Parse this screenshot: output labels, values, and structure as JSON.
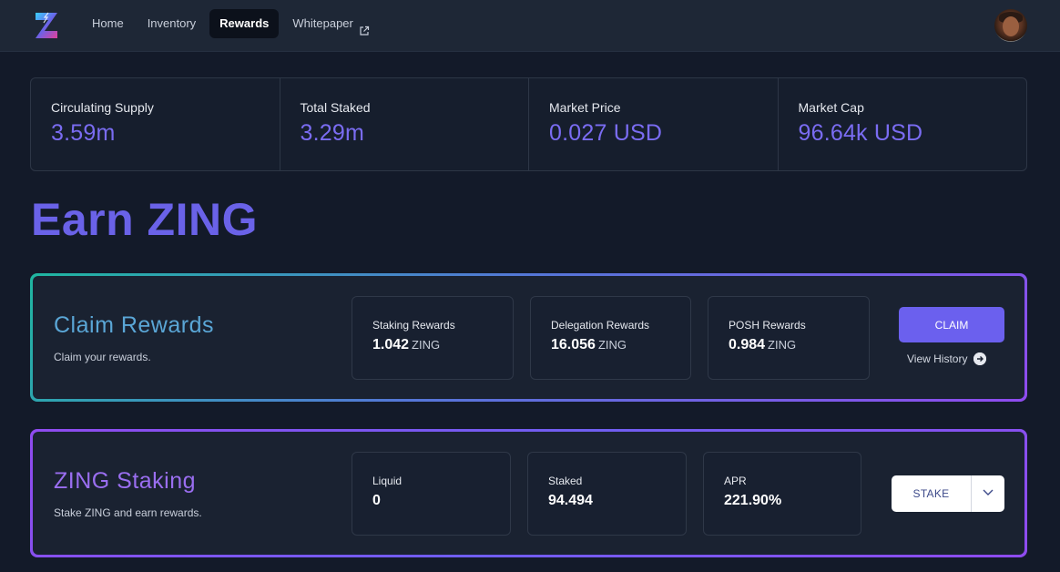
{
  "nav": {
    "items": [
      {
        "label": "Home",
        "active": false
      },
      {
        "label": "Inventory",
        "active": false
      },
      {
        "label": "Rewards",
        "active": true
      },
      {
        "label": "Whitepaper",
        "active": false,
        "external": true
      }
    ]
  },
  "stats": [
    {
      "label": "Circulating Supply",
      "value": "3.59m"
    },
    {
      "label": "Total Staked",
      "value": "3.29m"
    },
    {
      "label": "Market Price",
      "value": "0.027 USD"
    },
    {
      "label": "Market Cap",
      "value": "96.64k USD"
    }
  ],
  "page_title": "Earn ZING",
  "claim": {
    "title": "Claim Rewards",
    "subtitle": "Claim your rewards.",
    "metrics": [
      {
        "label": "Staking Rewards",
        "value": "1.042",
        "unit": "ZING"
      },
      {
        "label": "Delegation Rewards",
        "value": "16.056",
        "unit": "ZING"
      },
      {
        "label": "POSH Rewards",
        "value": "0.984",
        "unit": "ZING"
      }
    ],
    "button_label": "CLAIM",
    "history_label": "View History"
  },
  "staking": {
    "title": "ZING Staking",
    "subtitle": "Stake ZING and earn rewards.",
    "metrics": [
      {
        "label": "Liquid",
        "value": "0"
      },
      {
        "label": "Staked",
        "value": "94.494"
      },
      {
        "label": "APR",
        "value": "221.90%"
      }
    ],
    "button_label": "STAKE"
  },
  "colors": {
    "accent": "#6b60ee",
    "background": "#131a29",
    "nav_background": "#1e2736",
    "stat_value": "#7a6cf2"
  },
  "icons": {
    "logo": "zing-logo",
    "external_link": "external-link-icon",
    "view_history": "arrow-right-circle-icon",
    "stake_dropdown": "chevron-down-icon"
  }
}
